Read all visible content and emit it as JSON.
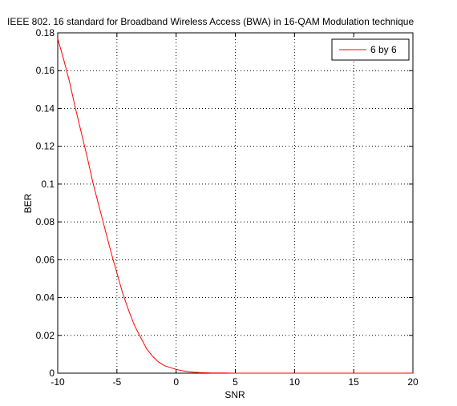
{
  "chart_data": {
    "type": "line",
    "title": "IEEE 802. 16 standard for Broadband Wireless Access (BWA) in 16-QAM Modulation technique",
    "xlabel": "SNR",
    "ylabel": "BER",
    "xlim": [
      -10,
      20
    ],
    "ylim": [
      0,
      0.18
    ],
    "xticks": [
      -10,
      -5,
      0,
      5,
      10,
      15,
      20
    ],
    "yticks": [
      0,
      0.02,
      0.04,
      0.06,
      0.08,
      0.1,
      0.12,
      0.14,
      0.16,
      0.18
    ],
    "grid": true,
    "legend_position": "top-right",
    "series": [
      {
        "name": "6 by 6",
        "color": "#ff0000",
        "x": [
          -10,
          -9.5,
          -9,
          -8.5,
          -8,
          -7.5,
          -7,
          -6.5,
          -6,
          -5.5,
          -5,
          -4.5,
          -4,
          -3.5,
          -3,
          -2.5,
          -2,
          -1.5,
          -1,
          -0.5,
          0,
          0.5,
          1,
          1.5,
          2,
          2.5,
          3,
          4,
          5,
          6,
          8,
          10,
          12,
          14,
          16,
          18,
          20
        ],
        "y": [
          0.177,
          0.166,
          0.154,
          0.14,
          0.127,
          0.114,
          0.1,
          0.088,
          0.076,
          0.064,
          0.053,
          0.042,
          0.033,
          0.025,
          0.019,
          0.013,
          0.009,
          0.006,
          0.004,
          0.003,
          0.002,
          0.0013,
          0.0008,
          0.0005,
          0.0003,
          0.0002,
          0.0001,
          0.0001,
          0,
          0,
          0,
          0,
          0,
          0,
          0,
          0,
          0
        ]
      }
    ]
  }
}
